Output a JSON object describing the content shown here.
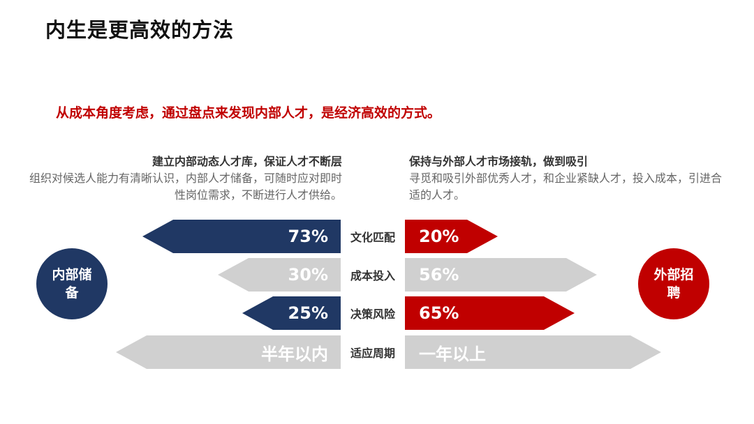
{
  "title": "内生是更高效的方法",
  "subtitle": "从成本角度考虑，通过盘点来发现内部人才，是经济高效的方式。",
  "internal": {
    "heading": "建立内部动态人才库，保证人才不断层",
    "body": "组织对候选人能力有清晰认识，内部人才储备，可随时应对即时性岗位需求，不断进行人才供给。",
    "label": "内部储备",
    "color": "#203864"
  },
  "external": {
    "heading": "保持与外部人才市场接轨，做到吸引",
    "body": "寻觅和吸引外部优秀人才，和企业紧缺人才，投入成本，引进合适的人才。",
    "label": "外部招聘",
    "color": "#c00000"
  },
  "rows": [
    {
      "category": "文化匹配",
      "left": "73%",
      "right": "20%"
    },
    {
      "category": "成本投入",
      "left": "30%",
      "right": "56%"
    },
    {
      "category": "决策风险",
      "left": "25%",
      "right": "65%"
    },
    {
      "category": "适应周期",
      "left": "半年以内",
      "right": "一年以上"
    }
  ],
  "colors": {
    "highlight_left": "#203864",
    "highlight_right": "#c00000",
    "muted": "#d0d0d0"
  }
}
